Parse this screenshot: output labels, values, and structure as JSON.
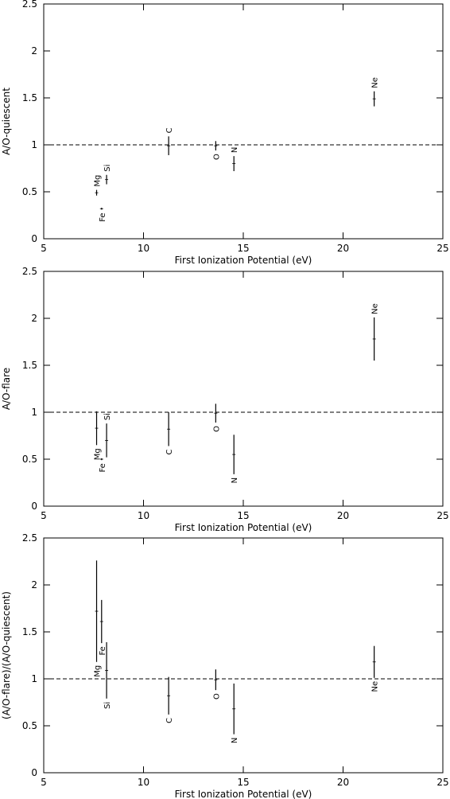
{
  "chart_data": [
    {
      "type": "errorbar",
      "xlabel": "First Ionization Potential (eV)",
      "ylabel": "A/O-quiescent",
      "xlim": [
        5,
        25
      ],
      "ylim": [
        0,
        2.5
      ],
      "xticks": [
        5,
        10,
        15,
        20,
        25
      ],
      "yticks": [
        0,
        0.5,
        1,
        1.5,
        2,
        2.5
      ],
      "hline": 1,
      "labels": [
        "Fe",
        "Mg",
        "Si",
        "C",
        "O",
        "N",
        "Ne"
      ],
      "x": [
        7.9,
        7.65,
        8.15,
        11.26,
        13.62,
        14.53,
        21.56
      ],
      "values": [
        0.32,
        0.49,
        0.63,
        0.99,
        0.99,
        0.8,
        1.49
      ],
      "errors": [
        0.01,
        0.03,
        0.05,
        0.1,
        0.05,
        0.08,
        0.08
      ]
    },
    {
      "type": "errorbar",
      "xlabel": "First Ionization Potential (eV)",
      "ylabel": "A/O-flare",
      "xlim": [
        5,
        25
      ],
      "ylim": [
        0,
        2.5
      ],
      "xticks": [
        5,
        10,
        15,
        20,
        25
      ],
      "yticks": [
        0,
        0.5,
        1,
        1.5,
        2,
        2.5
      ],
      "hline": 1,
      "labels": [
        "Fe",
        "Mg",
        "Si",
        "C",
        "O",
        "N",
        "Ne"
      ],
      "x": [
        7.9,
        7.65,
        8.15,
        11.26,
        13.62,
        14.53,
        21.56
      ],
      "values": [
        0.5,
        0.83,
        0.7,
        0.82,
        0.99,
        0.55,
        1.78
      ],
      "errors": [
        0.01,
        0.18,
        0.18,
        0.18,
        0.1,
        0.21,
        0.23
      ]
    },
    {
      "type": "errorbar",
      "xlabel": "First Ionization Potential (eV)",
      "ylabel": "(A/O-flare)/(A/O-quiescent)",
      "xlim": [
        5,
        25
      ],
      "ylim": [
        0,
        2.5
      ],
      "xticks": [
        5,
        10,
        15,
        20,
        25
      ],
      "yticks": [
        0,
        0.5,
        1,
        1.5,
        2,
        2.5
      ],
      "hline": 1,
      "labels": [
        "Fe",
        "Mg",
        "Si",
        "C",
        "O",
        "N",
        "Ne"
      ],
      "x": [
        7.9,
        7.65,
        8.15,
        11.26,
        13.62,
        14.53,
        21.56
      ],
      "values": [
        1.61,
        1.72,
        1.09,
        0.82,
        0.99,
        0.68,
        1.18
      ],
      "errors": [
        0.23,
        0.54,
        0.3,
        0.2,
        0.11,
        0.27,
        0.17
      ]
    }
  ]
}
